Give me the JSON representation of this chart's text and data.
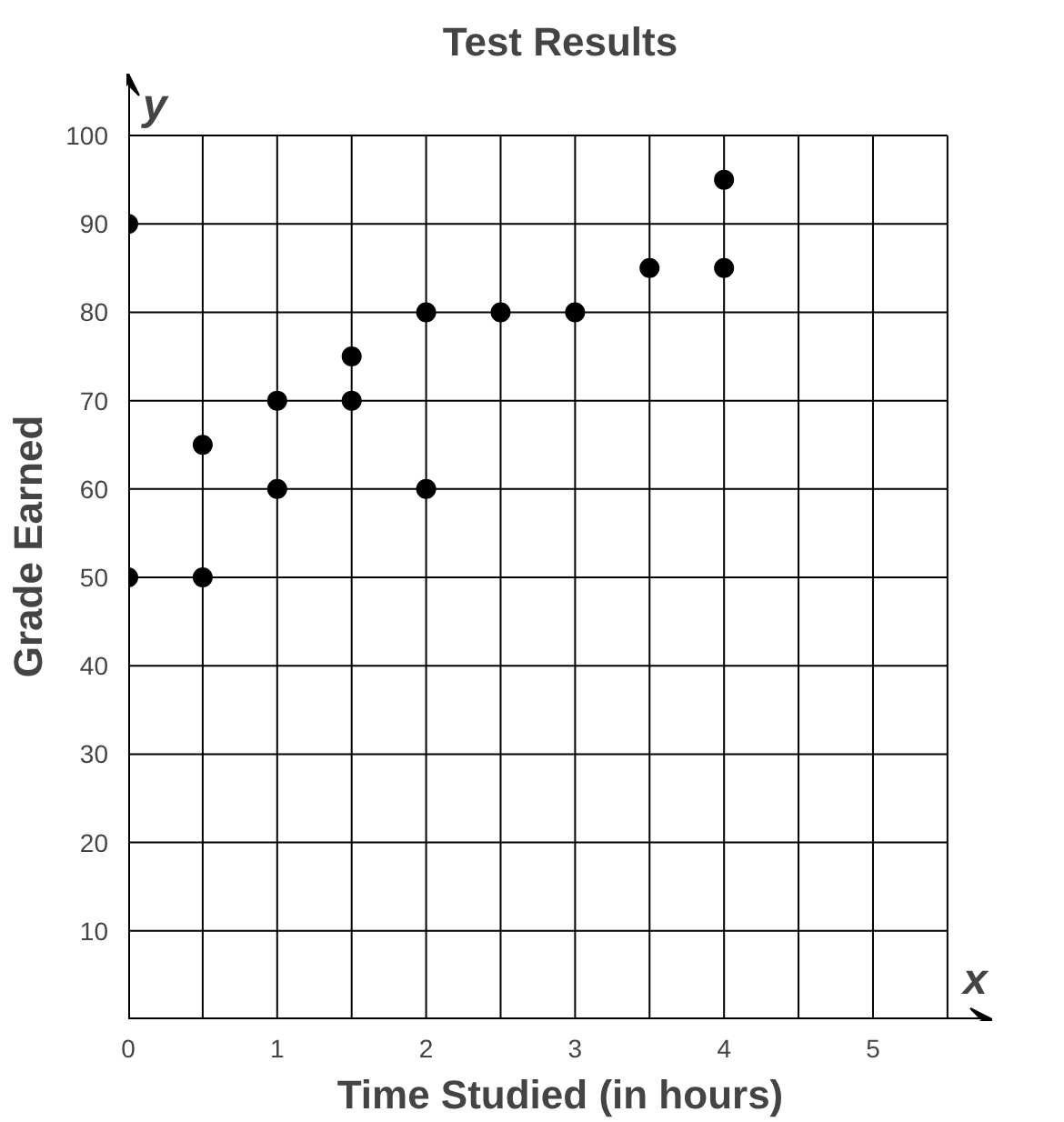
{
  "chart_data": {
    "type": "scatter",
    "title": "Test Results",
    "xlabel": "Time Studied (in hours)",
    "ylabel": "Grade Earned",
    "annotations": [
      "y",
      "x"
    ],
    "x": [
      0,
      0,
      0.5,
      0.5,
      1,
      1,
      1.5,
      1.5,
      2,
      2,
      2.5,
      3,
      3.5,
      4,
      4
    ],
    "values": [
      90,
      50,
      65,
      50,
      70,
      60,
      75,
      70,
      80,
      60,
      80,
      80,
      85,
      95,
      85
    ],
    "color": "#000000",
    "marker": "circle",
    "grid": true,
    "xlim": [
      0,
      5.8
    ],
    "ylim": [
      0,
      107
    ],
    "xticks": [
      0,
      {
        "value": 0.5,
        "label": null
      },
      1,
      {
        "value": 1.5,
        "label": null
      },
      2,
      {
        "value": 2.5,
        "label": null
      },
      3,
      {
        "value": 3.5,
        "label": null
      },
      4,
      {
        "value": 4.5,
        "label": null
      },
      5,
      {
        "value": 5.5,
        "label": null
      }
    ],
    "yticks": [
      {
        "value": 0,
        "label": null
      },
      10,
      20,
      30,
      40,
      50,
      60,
      70,
      80,
      90,
      100
    ]
  }
}
